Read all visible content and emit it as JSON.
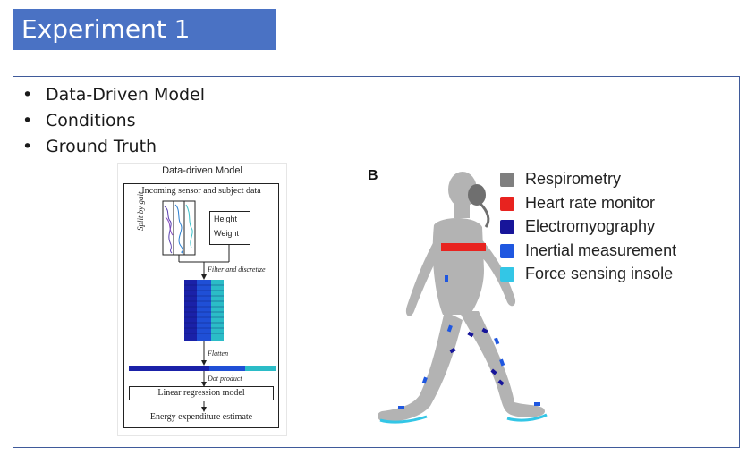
{
  "slide": {
    "title": "Experiment 1",
    "bullet_symbol": "•",
    "bullets": [
      "Data-Driven Model",
      "Conditions",
      "Ground Truth"
    ]
  },
  "left_figure": {
    "title": "Data-driven Model",
    "incoming": "Incoming sensor and subject data",
    "split_label": "Split by gait",
    "height_label": "Height",
    "weight_label": "Weight",
    "filter_label": "Filter and discretize",
    "flatten_label": "Flatten",
    "dot_label": "Dot product",
    "model_label": "Linear regression model",
    "estimate_label": "Energy expenditure estimate"
  },
  "right_figure": {
    "panel_letter": "B",
    "legend": [
      {
        "label": "Respirometry",
        "color": "#7f7f7f"
      },
      {
        "label": "Heart rate monitor",
        "color": "#e8231f"
      },
      {
        "label": "Electromyography",
        "color": "#17159a"
      },
      {
        "label": "Inertial measurement",
        "color": "#1f57e0"
      },
      {
        "label": "Force sensing insole",
        "color": "#33c6e6"
      }
    ]
  },
  "colors": {
    "title_bg": "#4a72c4",
    "box_border": "#3f5a9a",
    "body_gray": "#b3b3b3"
  }
}
